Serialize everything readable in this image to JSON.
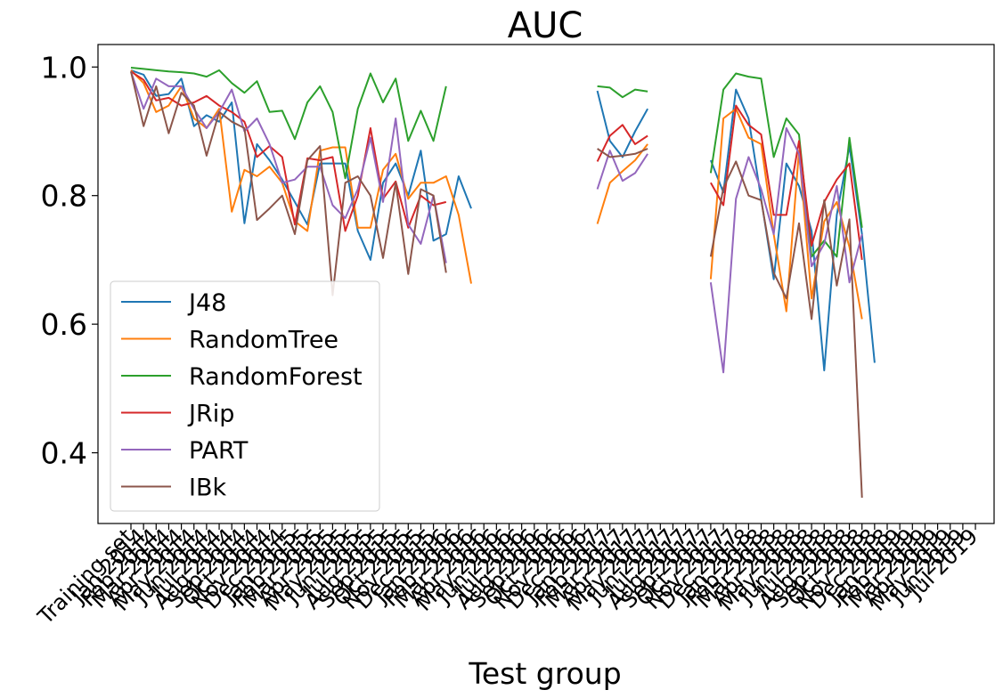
{
  "chart_data": {
    "type": "line",
    "title": "AUC",
    "xlabel": "Test group",
    "ylabel": "",
    "ylim": [
      0.29,
      1.035
    ],
    "yticks": [
      0.4,
      0.6,
      0.8,
      1.0
    ],
    "ytick_labels": [
      "0.4",
      "0.6",
      "0.8",
      "1.0"
    ],
    "grid": false,
    "legend_position": "lower-left",
    "categories": [
      "Training set",
      "Jan 2014",
      "Feb 2014",
      "Mar 2014",
      "Apr 2014",
      "May 2014",
      "Jun 2014",
      "Jul 2014",
      "Aug 2014",
      "Sep 2014",
      "Oct 2014",
      "Nov 2014",
      "Dec 2014",
      "Jan 2015",
      "Feb 2015",
      "Mar 2015",
      "Apr 2015",
      "May 2015",
      "Jun 2015",
      "Jul 2015",
      "Aug 2015",
      "Sep 2015",
      "Oct 2015",
      "Nov 2015",
      "Dec 2015",
      "Jan 2016",
      "Feb 2016",
      "Mar 2016",
      "Apr 2016",
      "May 2016",
      "Jun 2016",
      "Jul 2016",
      "Aug 2016",
      "Sep 2016",
      "Oct 2016",
      "Nov 2016",
      "Dec 2016",
      "Jan 2017",
      "Feb 2017",
      "Mar 2017",
      "Apr 2017",
      "May 2017",
      "Jun 2017",
      "Jul 2017",
      "Aug 2017",
      "Sep 2017",
      "Oct 2017",
      "Nov 2017",
      "Dec 2017",
      "Jan 2018",
      "Feb 2018",
      "Mar 2018",
      "Apr 2018",
      "May 2018",
      "Jun 2018",
      "Jul 2018",
      "Aug 2018",
      "Sep 2018",
      "Oct 2018",
      "Nov 2018",
      "Dec 2018",
      "Jan 2019",
      "Feb 2019",
      "Mar 2019",
      "Apr 2019",
      "May 2019",
      "Jun 2019",
      "Jul 2019"
    ],
    "series": [
      {
        "name": "J48",
        "color": "#1f77b4",
        "values": [
          0.995,
          0.988,
          0.955,
          0.958,
          0.982,
          0.908,
          0.925,
          0.915,
          0.945,
          0.757,
          0.88,
          0.855,
          0.825,
          0.79,
          0.755,
          0.85,
          0.85,
          0.85,
          0.745,
          0.7,
          0.82,
          0.85,
          0.8,
          0.87,
          0.73,
          0.74,
          0.83,
          0.78,
          null,
          null,
          null,
          null,
          null,
          null,
          null,
          null,
          null,
          0.963,
          0.885,
          0.86,
          0.9,
          0.935,
          null,
          null,
          null,
          null,
          0.855,
          0.805,
          0.965,
          0.92,
          0.795,
          0.67,
          0.85,
          0.815,
          0.745,
          0.528,
          0.77,
          0.877,
          0.74,
          0.54,
          null,
          null,
          null,
          null,
          null,
          null,
          null,
          null
        ]
      },
      {
        "name": "RandomTree",
        "color": "#ff7f0e",
        "values": [
          0.995,
          0.975,
          0.93,
          0.94,
          0.97,
          0.92,
          0.905,
          0.935,
          0.775,
          0.84,
          0.83,
          0.845,
          0.82,
          0.76,
          0.745,
          0.87,
          0.875,
          0.875,
          0.75,
          0.75,
          0.84,
          0.865,
          0.795,
          0.82,
          0.82,
          0.83,
          0.77,
          0.663,
          null,
          null,
          null,
          null,
          null,
          null,
          null,
          null,
          null,
          0.756,
          0.82,
          0.838,
          0.855,
          0.88,
          null,
          null,
          null,
          null,
          0.67,
          0.92,
          0.935,
          0.89,
          0.88,
          0.74,
          0.62,
          0.87,
          0.64,
          0.76,
          0.79,
          0.72,
          0.608,
          null,
          null,
          null,
          null,
          null,
          null,
          null,
          null,
          null
        ]
      },
      {
        "name": "RandomForest",
        "color": "#2ca02c",
        "values": [
          0.999,
          0.997,
          0.995,
          0.993,
          0.992,
          0.99,
          0.985,
          0.995,
          0.975,
          0.96,
          0.978,
          0.93,
          0.932,
          0.888,
          0.945,
          0.97,
          0.93,
          0.827,
          0.935,
          0.99,
          0.945,
          0.982,
          0.885,
          0.932,
          0.885,
          0.97,
          null,
          null,
          null,
          null,
          null,
          null,
          null,
          null,
          null,
          null,
          null,
          0.97,
          0.968,
          0.953,
          0.965,
          0.962,
          null,
          null,
          null,
          null,
          0.835,
          0.965,
          0.99,
          0.985,
          0.982,
          0.86,
          0.92,
          0.895,
          0.705,
          0.73,
          0.705,
          0.89,
          0.75,
          null,
          null,
          null,
          null,
          null,
          null,
          null,
          null,
          null
        ]
      },
      {
        "name": "JRip",
        "color": "#d62728",
        "values": [
          0.993,
          0.98,
          0.948,
          0.952,
          0.94,
          0.945,
          0.955,
          0.94,
          0.93,
          0.915,
          0.86,
          0.877,
          0.86,
          0.755,
          0.858,
          0.855,
          0.86,
          0.745,
          0.8,
          0.905,
          0.795,
          0.822,
          0.75,
          0.8,
          0.785,
          0.79,
          null,
          null,
          null,
          null,
          null,
          null,
          null,
          null,
          null,
          null,
          null,
          0.853,
          0.893,
          0.91,
          0.88,
          0.893,
          null,
          null,
          null,
          null,
          0.82,
          0.785,
          0.94,
          0.91,
          0.895,
          0.77,
          0.77,
          0.885,
          0.722,
          0.79,
          0.825,
          0.85,
          0.7,
          null,
          null,
          null,
          null,
          null,
          null,
          null,
          null,
          null
        ]
      },
      {
        "name": "PART",
        "color": "#9467bd",
        "values": [
          0.993,
          0.935,
          0.982,
          0.97,
          0.97,
          0.935,
          0.905,
          0.93,
          0.965,
          0.9,
          0.92,
          0.88,
          0.82,
          0.825,
          0.845,
          0.845,
          0.785,
          0.765,
          0.81,
          0.89,
          0.79,
          0.92,
          0.755,
          0.725,
          0.8,
          0.695,
          null,
          null,
          null,
          null,
          null,
          null,
          null,
          null,
          null,
          null,
          null,
          0.81,
          0.87,
          0.823,
          0.835,
          0.865,
          null,
          null,
          null,
          null,
          0.665,
          0.525,
          0.795,
          0.86,
          0.81,
          0.74,
          0.905,
          0.865,
          0.69,
          0.725,
          0.815,
          0.665,
          0.74,
          null,
          null,
          null,
          null,
          null,
          null,
          null,
          null,
          null
        ]
      },
      {
        "name": "IBk",
        "color": "#8c564b",
        "values": [
          0.993,
          0.908,
          0.97,
          0.897,
          0.96,
          0.94,
          0.862,
          0.93,
          0.915,
          0.905,
          0.762,
          0.78,
          0.8,
          0.74,
          0.855,
          0.877,
          0.645,
          0.82,
          0.83,
          0.8,
          0.703,
          0.82,
          0.678,
          0.81,
          0.8,
          0.68,
          null,
          null,
          null,
          null,
          null,
          null,
          null,
          null,
          null,
          null,
          null,
          0.873,
          0.86,
          0.862,
          0.865,
          0.873,
          null,
          null,
          null,
          null,
          0.705,
          0.812,
          0.853,
          0.8,
          0.793,
          0.68,
          0.64,
          0.757,
          0.608,
          0.793,
          0.66,
          0.763,
          0.33,
          null,
          null,
          null,
          null,
          null,
          null,
          null,
          null,
          null
        ]
      }
    ]
  }
}
